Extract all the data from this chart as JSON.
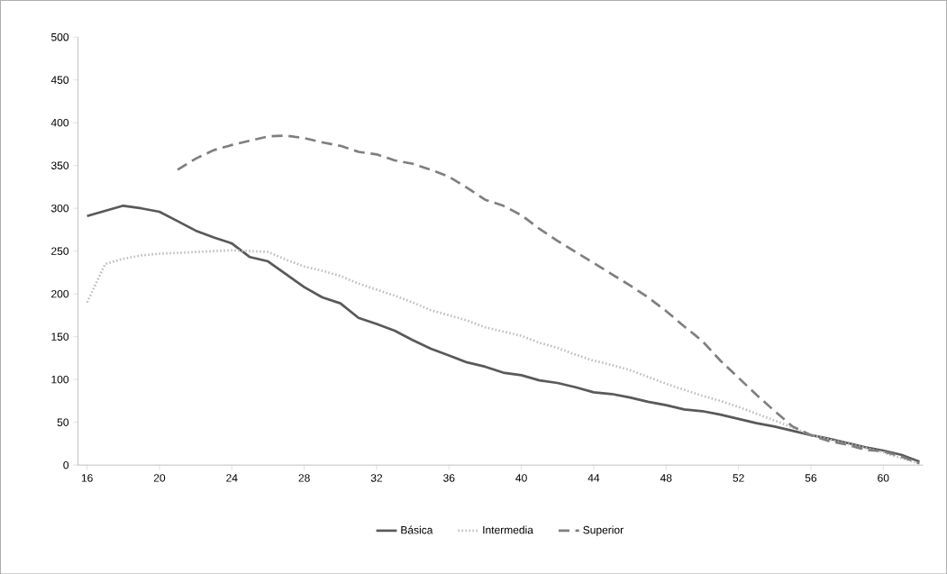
{
  "chart_data": {
    "type": "line",
    "x": [
      16,
      17,
      18,
      19,
      20,
      21,
      22,
      23,
      24,
      25,
      26,
      27,
      28,
      29,
      30,
      31,
      32,
      33,
      34,
      35,
      36,
      37,
      38,
      39,
      40,
      41,
      42,
      43,
      44,
      45,
      46,
      47,
      48,
      49,
      50,
      51,
      52,
      53,
      54,
      55,
      56,
      57,
      58,
      59,
      60,
      61,
      62
    ],
    "series": [
      {
        "name": "Básica",
        "color": "#595959",
        "line_style": "solid",
        "values": [
          291,
          297,
          303,
          300,
          296,
          285,
          274,
          266,
          259,
          243,
          238,
          223,
          208,
          196,
          189,
          172,
          165,
          157,
          146,
          136,
          128,
          120,
          115,
          108,
          105,
          99,
          96,
          91,
          85,
          83,
          79,
          74,
          70,
          65,
          63,
          59,
          54,
          49,
          45,
          40,
          35,
          31,
          26,
          21,
          17,
          12,
          4
        ]
      },
      {
        "name": "Intermedia",
        "color": "#bfbfbf",
        "line_style": "dotted",
        "values": [
          190,
          235,
          241,
          245,
          247,
          248,
          249,
          250,
          251,
          250,
          249,
          240,
          232,
          227,
          221,
          212,
          205,
          198,
          190,
          181,
          175,
          169,
          161,
          156,
          151,
          143,
          137,
          129,
          122,
          117,
          111,
          103,
          95,
          88,
          81,
          75,
          68,
          60,
          52,
          44,
          35,
          30,
          25,
          20,
          15,
          8,
          2
        ]
      },
      {
        "name": "Superior",
        "color": "#7f7f7f",
        "line_style": "dashed",
        "values": [
          null,
          null,
          null,
          null,
          null,
          345,
          358,
          368,
          374,
          379,
          384,
          385,
          382,
          377,
          373,
          366,
          363,
          356,
          352,
          345,
          337,
          324,
          310,
          303,
          292,
          276,
          262,
          249,
          236,
          223,
          210,
          196,
          180,
          162,
          145,
          122,
          102,
          82,
          63,
          45,
          35,
          28,
          24,
          18,
          16,
          10,
          2
        ]
      }
    ],
    "xlim": [
      15.5,
      62.2
    ],
    "ylim": [
      0,
      500
    ],
    "xticks": [
      16,
      20,
      24,
      28,
      32,
      36,
      40,
      44,
      48,
      52,
      56,
      60
    ],
    "yticks": [
      0,
      50,
      100,
      150,
      200,
      250,
      300,
      350,
      400,
      450,
      500
    ],
    "legend": "bottom",
    "grid": false,
    "marker": "none"
  }
}
